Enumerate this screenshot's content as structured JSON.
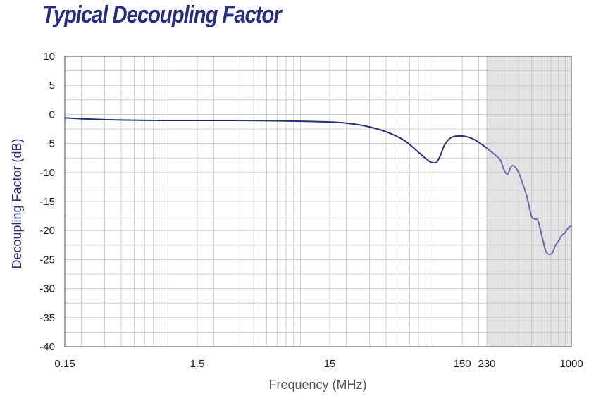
{
  "chart_data": {
    "type": "line",
    "title": "Typical Decoupling Factor",
    "xlabel": "Frequency (MHz)",
    "ylabel": "Decoupling Factor (dB)",
    "x_scale": "log",
    "xlim": [
      0.15,
      1000
    ],
    "ylim": [
      -40,
      10
    ],
    "grid": true,
    "x_ticks": [
      0.15,
      1.5,
      15,
      150,
      230,
      1000
    ],
    "x_tick_labels": [
      "0.15",
      "1.5",
      "15",
      "150",
      "230",
      "1000"
    ],
    "y_ticks": [
      10,
      5,
      0,
      -5,
      -10,
      -15,
      -20,
      -25,
      -30,
      -35,
      -40
    ],
    "y_tick_labels": [
      "10",
      "5",
      "0",
      "-5",
      "-10",
      "-15",
      "-20",
      "-25",
      "-30",
      "-35",
      "-40"
    ],
    "shaded_region": {
      "x": [
        230,
        1000
      ],
      "color": "#e3e3e6"
    },
    "colors": {
      "line_low": "#27306e",
      "line_high": "#6a6aa8",
      "title": "#2a2d7c",
      "grid": "#c2c2c2"
    },
    "series": [
      {
        "x": [
          0.15,
          0.2,
          0.3,
          0.5,
          0.8,
          1.5,
          3,
          6,
          10,
          15,
          20,
          28,
          40,
          55,
          70,
          85,
          95,
          100,
          105,
          110,
          120,
          130,
          145,
          160,
          180,
          200,
          215,
          230,
          260,
          290,
          310,
          330,
          345,
          360,
          380,
          400,
          430,
          460,
          500,
          530,
          560,
          600,
          640,
          680,
          720,
          760,
          800,
          850,
          900,
          950,
          1000
        ],
        "y": [
          -0.6,
          -0.75,
          -0.9,
          -1.0,
          -1.05,
          -1.05,
          -1.05,
          -1.1,
          -1.2,
          -1.3,
          -1.5,
          -2.0,
          -3.0,
          -4.5,
          -6.5,
          -8.1,
          -8.3,
          -7.6,
          -6.5,
          -5.3,
          -4.2,
          -3.8,
          -3.7,
          -3.8,
          -4.2,
          -4.8,
          -5.3,
          -5.8,
          -6.8,
          -7.8,
          -9.5,
          -10.3,
          -9.3,
          -8.8,
          -9.2,
          -10.0,
          -12.0,
          -14.0,
          -17.5,
          -18.0,
          -18.3,
          -21.0,
          -23.5,
          -24.1,
          -23.8,
          -22.5,
          -21.8,
          -20.8,
          -20.3,
          -19.5,
          -19.2
        ]
      }
    ]
  }
}
